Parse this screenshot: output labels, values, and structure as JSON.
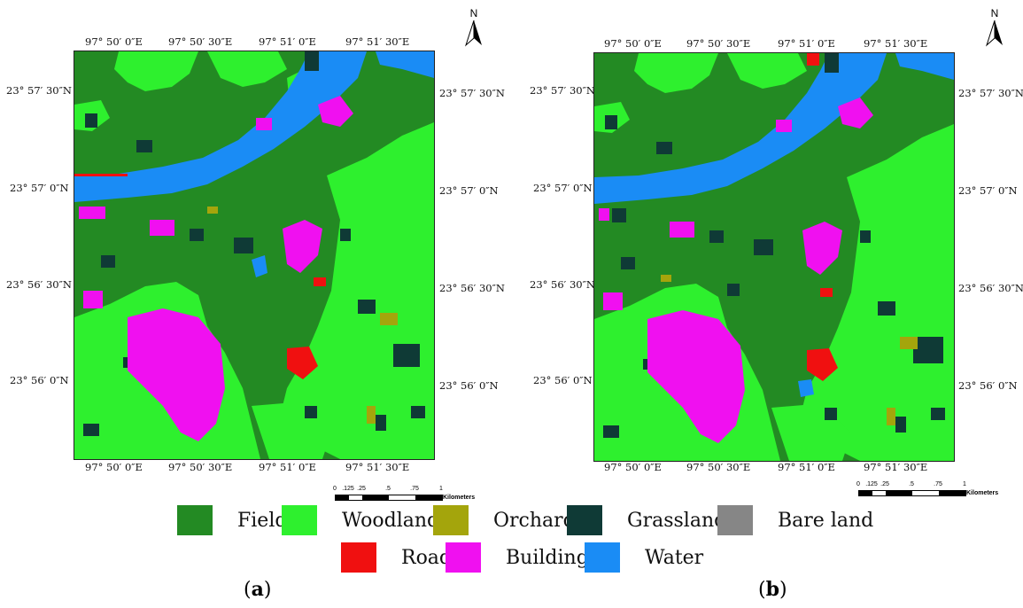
{
  "colors": {
    "Field": "#238a23",
    "Woodland": "#2ef02e",
    "Orchard": "#a4a50c",
    "Grassland": "#0f3a36",
    "Bare land": "#868686",
    "Road": "#f01010",
    "Building": "#f010f0",
    "Water": "#1a8cf5"
  },
  "panels": [
    {
      "caption_open": "(",
      "caption_letter": "a",
      "caption_close": ")",
      "north": "N",
      "top_lon": [
        "97° 50′ 0″E",
        "97° 50′ 30″E",
        "97° 51′ 0″E",
        "97° 51′ 30″E"
      ],
      "bottom_lon": [
        "97° 50′ 0″E",
        "97° 50′ 30″E",
        "97° 51′ 0″E",
        "97° 51′ 30″E"
      ],
      "left_lat": [
        "23° 57′ 30″N",
        "23° 57′ 0″N",
        "23° 56′ 30″N",
        "23° 56′ 0″N"
      ],
      "right_lat": [
        "23° 57′ 30″N",
        "23° 57′ 0″N",
        "23° 56′ 30″N",
        "23° 56′ 0″N"
      ],
      "scale_ticks": [
        "0",
        ".125",
        ".25",
        ".5",
        ".75",
        "1"
      ],
      "scale_unit": "Kilometers"
    },
    {
      "caption_open": "(",
      "caption_letter": "b",
      "caption_close": ")",
      "north": "N",
      "top_lon": [
        "97° 50′ 0″E",
        "97° 50′ 30″E",
        "97° 51′ 0″E",
        "97° 51′ 30″E"
      ],
      "bottom_lon": [
        "97° 50′ 0″E",
        "97° 50′ 30″E",
        "97° 51′ 0″E",
        "97° 51′ 30″E"
      ],
      "left_lat": [
        "23° 57′ 30″N",
        "23° 57′ 0″N",
        "23° 56′ 30″N",
        "23° 56′ 0″N"
      ],
      "right_lat": [
        "23° 57′ 30″N",
        "23° 57′ 0″N",
        "23° 56′ 30″N",
        "23° 56′ 0″N"
      ],
      "scale_ticks": [
        "0",
        ".125",
        ".25",
        ".5",
        ".75",
        "1"
      ],
      "scale_unit": "Kilometers"
    }
  ],
  "legend": {
    "row1": [
      "Field",
      "Woodland",
      "Orchard",
      "Grassland",
      "Bare land"
    ],
    "row2": [
      "Road",
      "Building",
      "Water"
    ]
  }
}
